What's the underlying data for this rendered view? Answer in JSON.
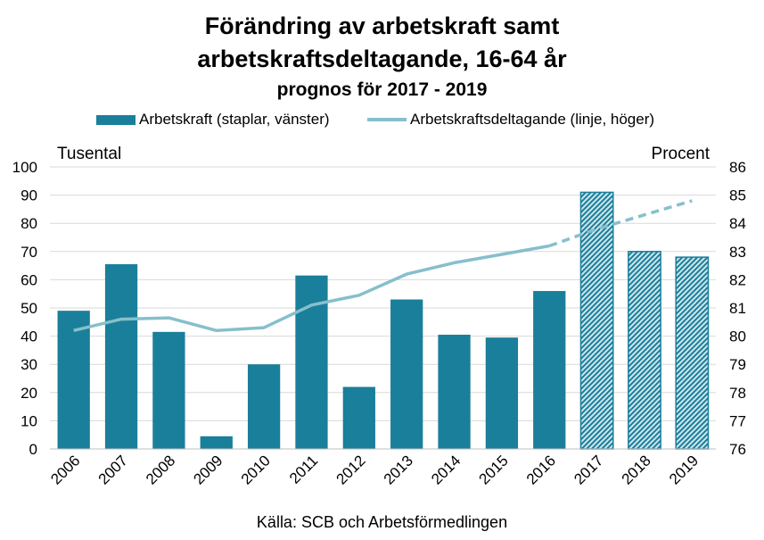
{
  "title_line1": "Förändring av arbetskraft samt",
  "title_line2": "arbetskraftsdeltagande, 16-64 år",
  "subtitle": "prognos för 2017 - 2019",
  "left_unit": "Tusental",
  "right_unit": "Procent",
  "source": "Källa: SCB och Arbetsförmedlingen",
  "colors": {
    "bar": "#1a7f9a",
    "line": "#86bfcc",
    "grid": "#d9d9d9"
  },
  "chart_data": {
    "type": "bar",
    "categories": [
      "2006",
      "2007",
      "2008",
      "2009",
      "2010",
      "2011",
      "2012",
      "2013",
      "2014",
      "2015",
      "2016",
      "2017",
      "2018",
      "2019"
    ],
    "series": [
      {
        "name": "Arbetskraft (staplar, vänster)",
        "type": "bar",
        "axis": "left",
        "values": [
          49,
          65.5,
          41.5,
          4.5,
          30,
          61.5,
          22,
          53,
          40.5,
          39.5,
          56,
          91,
          70,
          68
        ],
        "forecast_from": "2017"
      },
      {
        "name": "Arbetskraftsdeltagande (linje, höger)",
        "type": "line",
        "axis": "right",
        "values": [
          80.2,
          80.6,
          80.65,
          80.2,
          80.3,
          81.1,
          81.45,
          82.2,
          82.6,
          82.9,
          83.2,
          83.8,
          84.3,
          84.8
        ],
        "forecast_from": "2016"
      }
    ],
    "y_left": {
      "label": "Tusental",
      "range": [
        0,
        100
      ],
      "ticks": [
        0,
        10,
        20,
        30,
        40,
        50,
        60,
        70,
        80,
        90,
        100
      ]
    },
    "y_right": {
      "label": "Procent",
      "range": [
        76,
        86
      ],
      "ticks": [
        76,
        77,
        78,
        79,
        80,
        81,
        82,
        83,
        84,
        85,
        86
      ]
    },
    "grid": true,
    "legend_position": "top"
  }
}
